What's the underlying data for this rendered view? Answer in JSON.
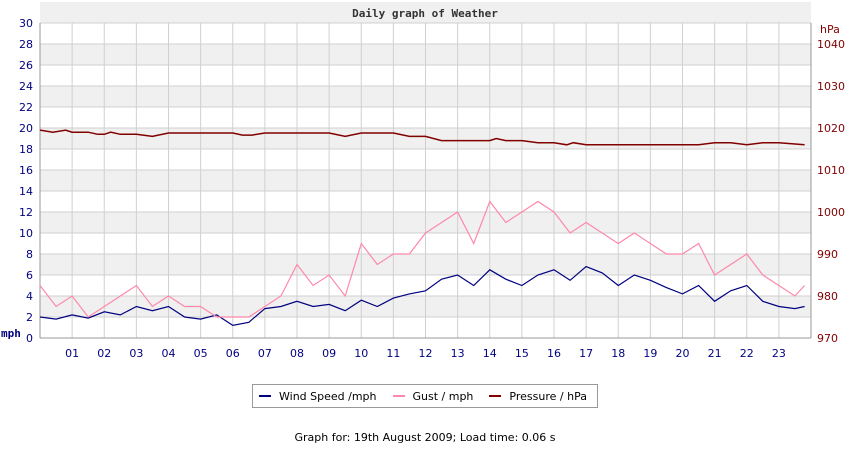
{
  "chart_data": {
    "type": "line",
    "title": "Daily graph of Weather",
    "left_axis": {
      "unit": "mph",
      "ylim": [
        0,
        30
      ],
      "ticks": [
        "0",
        "2",
        "4",
        "6",
        "8",
        "10",
        "12",
        "14",
        "16",
        "18",
        "20",
        "22",
        "24",
        "26",
        "28",
        "30"
      ]
    },
    "right_axis": {
      "unit": "hPa",
      "ylim": [
        970,
        1045
      ],
      "ticks": [
        "970",
        "980",
        "990",
        "1000",
        "1010",
        "1020",
        "1030",
        "1040"
      ]
    },
    "x_axis": {
      "xlim": [
        0,
        24
      ],
      "ticks": [
        "01",
        "02",
        "03",
        "04",
        "05",
        "06",
        "07",
        "08",
        "09",
        "10",
        "11",
        "12",
        "13",
        "14",
        "15",
        "16",
        "17",
        "18",
        "19",
        "20",
        "21",
        "22",
        "23"
      ]
    },
    "grid": true,
    "legend_position": "bottom",
    "series": [
      {
        "name": "Wind Speed /mph",
        "color": "#000080",
        "axis": "left",
        "x": [
          0,
          0.5,
          1,
          1.5,
          2,
          2.5,
          3,
          3.5,
          4,
          4.5,
          5,
          5.5,
          6,
          6.5,
          7,
          7.5,
          8,
          8.5,
          9,
          9.5,
          10,
          10.5,
          11,
          11.5,
          12,
          12.5,
          13,
          13.5,
          14,
          14.5,
          15,
          15.5,
          16,
          16.5,
          17,
          17.5,
          18,
          18.5,
          19,
          19.5,
          20,
          20.5,
          21,
          21.5,
          22,
          22.5,
          23,
          23.5,
          23.8
        ],
        "values": [
          2,
          1.8,
          2.2,
          1.9,
          2.5,
          2.2,
          3.0,
          2.6,
          3.0,
          2.0,
          1.8,
          2.2,
          1.2,
          1.5,
          2.8,
          3.0,
          3.5,
          3.0,
          3.2,
          2.6,
          3.6,
          3.0,
          3.8,
          4.2,
          4.5,
          5.6,
          6.0,
          5.0,
          6.5,
          5.6,
          5.0,
          6.0,
          6.5,
          5.5,
          6.8,
          6.2,
          5.0,
          6.0,
          5.5,
          4.8,
          4.2,
          5.0,
          3.5,
          4.5,
          5.0,
          3.5,
          3.0,
          2.8,
          3.0
        ]
      },
      {
        "name": "Gust / mph",
        "color": "#ff88aa",
        "axis": "left",
        "x": [
          0,
          0.5,
          1,
          1.5,
          2,
          2.5,
          3,
          3.5,
          4,
          4.5,
          5,
          5.5,
          6,
          6.5,
          7,
          7.5,
          8,
          8.5,
          9,
          9.5,
          10,
          10.5,
          11,
          11.5,
          12,
          12.5,
          13,
          13.5,
          14,
          14.5,
          15,
          15.5,
          16,
          16.5,
          17,
          17.5,
          18,
          18.5,
          19,
          19.5,
          20,
          20.5,
          21,
          21.5,
          22,
          22.5,
          23,
          23.5,
          23.8
        ],
        "values": [
          5,
          3,
          4,
          2,
          3,
          4,
          5,
          3,
          4,
          3,
          3,
          2,
          2,
          2,
          3,
          4,
          7,
          5,
          6,
          4,
          9,
          7,
          8,
          8,
          10,
          11,
          12,
          9,
          13,
          11,
          12,
          13,
          12,
          10,
          11,
          10,
          9,
          10,
          9,
          8,
          8,
          9,
          6,
          7,
          8,
          6,
          5,
          4,
          5
        ]
      },
      {
        "name": "Pressure / hPa",
        "color": "#800000",
        "axis": "right",
        "x": [
          0,
          0.4,
          0.8,
          1,
          1.5,
          1.8,
          2,
          2.2,
          2.5,
          3,
          3.5,
          4,
          4.5,
          5,
          5.5,
          6,
          6.3,
          6.6,
          7,
          8,
          9,
          9.5,
          10,
          10.5,
          11,
          11.5,
          12,
          12.5,
          13,
          13.5,
          14,
          14.2,
          14.5,
          15,
          15.5,
          16,
          16.4,
          16.6,
          17,
          18,
          19,
          20,
          20.5,
          21,
          21.5,
          22,
          22.5,
          23,
          23.8
        ],
        "values": [
          1019.5,
          1019,
          1019.5,
          1019,
          1019,
          1018.5,
          1018.5,
          1019,
          1018.5,
          1018.5,
          1018,
          1018.8,
          1018.8,
          1018.8,
          1018.8,
          1018.8,
          1018.3,
          1018.3,
          1018.8,
          1018.8,
          1018.8,
          1018,
          1018.8,
          1018.8,
          1018.8,
          1018,
          1018,
          1017,
          1017,
          1017,
          1017,
          1017.5,
          1017,
          1017,
          1016.5,
          1016.5,
          1016,
          1016.5,
          1016,
          1016,
          1016,
          1016,
          1016,
          1016.5,
          1016.5,
          1016,
          1016.5,
          1016.5,
          1016
        ]
      }
    ]
  },
  "legend": {
    "wind_label": "Wind Speed /mph",
    "gust_label": "Gust / mph",
    "pressure_label": "Pressure / hPa"
  },
  "footer": {
    "text": "Graph for: 19th August 2009; Load time: 0.06 s"
  }
}
